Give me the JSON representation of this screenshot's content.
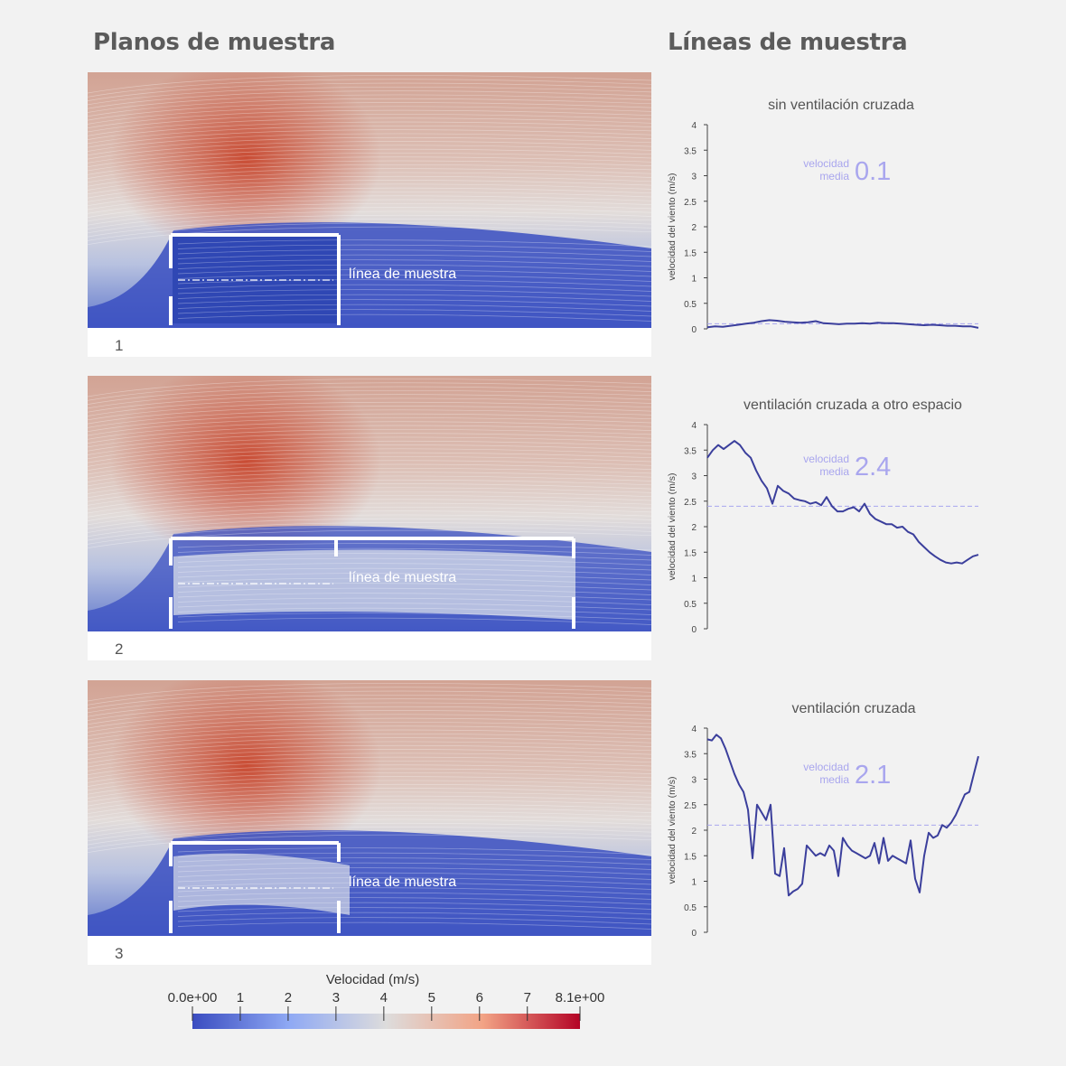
{
  "headings": {
    "planes": "Planos de muestra",
    "lines": "Líneas de muestra"
  },
  "colors": {
    "field_low": "#3a4fc1",
    "field_mid": "#dcdcdc",
    "field_high": "#c8462d",
    "series": "#3b3f9c",
    "mean_line": "#a9a6ee",
    "mean_text": "#a9a6ee"
  },
  "panels": [
    {
      "number": "1",
      "label": "línea de muestra"
    },
    {
      "number": "2",
      "label": "línea de muestra"
    },
    {
      "number": "3",
      "label": "línea de muestra"
    }
  ],
  "colorbar": {
    "title": "Velocidad (m/s)",
    "ticks": [
      "0.0e+00",
      "1",
      "2",
      "3",
      "4",
      "5",
      "6",
      "7",
      "8.1e+00"
    ],
    "tick_values": [
      0,
      1,
      2,
      3,
      4,
      5,
      6,
      7,
      8.1
    ],
    "range": [
      0,
      8.1
    ]
  },
  "chart_data": [
    {
      "type": "line",
      "title": "sin ventilación cruzada",
      "ylabel": "velocidad del viento (m/s)",
      "ylim": [
        0,
        4
      ],
      "yticks": [
        "0",
        "0.5",
        "1",
        "1.5",
        "2",
        "2.5",
        "3",
        "3.5",
        "4"
      ],
      "mean_label": [
        "velocidad",
        "media"
      ],
      "mean_value": "0.1",
      "mean": 0.1,
      "series": [
        {
          "values": [
            0.03,
            0.05,
            0.04,
            0.06,
            0.08,
            0.1,
            0.12,
            0.15,
            0.17,
            0.16,
            0.14,
            0.13,
            0.12,
            0.13,
            0.15,
            0.11,
            0.1,
            0.09,
            0.1,
            0.1,
            0.11,
            0.1,
            0.12,
            0.11,
            0.11,
            0.1,
            0.09,
            0.08,
            0.07,
            0.08,
            0.07,
            0.06,
            0.06,
            0.05,
            0.05,
            0.02
          ]
        }
      ]
    },
    {
      "type": "line",
      "title": "ventilación cruzada a otro espacio",
      "ylabel": "velocidad del viento (m/s)",
      "ylim": [
        0,
        4
      ],
      "yticks": [
        "0",
        "0.5",
        "1",
        "1.5",
        "2",
        "2.5",
        "3",
        "3.5",
        "4"
      ],
      "mean_label": [
        "velocidad",
        "media"
      ],
      "mean_value": "2.4",
      "mean": 2.4,
      "series": [
        {
          "values": [
            3.35,
            3.5,
            3.6,
            3.52,
            3.6,
            3.68,
            3.6,
            3.45,
            3.35,
            3.1,
            2.9,
            2.75,
            2.45,
            2.8,
            2.7,
            2.65,
            2.55,
            2.52,
            2.5,
            2.45,
            2.48,
            2.42,
            2.58,
            2.4,
            2.3,
            2.3,
            2.35,
            2.38,
            2.3,
            2.45,
            2.25,
            2.15,
            2.1,
            2.05,
            2.05,
            1.98,
            2.0,
            1.9,
            1.85,
            1.7,
            1.6,
            1.5,
            1.42,
            1.35,
            1.3,
            1.28,
            1.3,
            1.28,
            1.35,
            1.42,
            1.45
          ]
        }
      ]
    },
    {
      "type": "line",
      "title": "ventilación cruzada",
      "ylabel": "velocidad del viento (m/s)",
      "ylim": [
        0,
        4
      ],
      "yticks": [
        "0",
        "0.5",
        "1",
        "1.5",
        "2",
        "2.5",
        "3",
        "3.5",
        "4"
      ],
      "mean_label": [
        "velocidad",
        "media"
      ],
      "mean_value": "2.1",
      "mean": 2.1,
      "series": [
        {
          "values": [
            3.78,
            3.76,
            3.87,
            3.8,
            3.6,
            3.35,
            3.1,
            2.9,
            2.75,
            2.4,
            1.45,
            2.5,
            2.35,
            2.2,
            2.5,
            1.15,
            1.1,
            1.65,
            0.72,
            0.8,
            0.85,
            0.95,
            1.7,
            1.6,
            1.5,
            1.55,
            1.5,
            1.7,
            1.6,
            1.1,
            1.85,
            1.7,
            1.6,
            1.55,
            1.5,
            1.45,
            1.5,
            1.75,
            1.35,
            1.85,
            1.4,
            1.5,
            1.45,
            1.4,
            1.35,
            1.8,
            1.05,
            0.78,
            1.5,
            1.95,
            1.85,
            1.9,
            2.1,
            2.05,
            2.15,
            2.3,
            2.5,
            2.7,
            2.75,
            3.1,
            3.45
          ]
        }
      ]
    }
  ]
}
